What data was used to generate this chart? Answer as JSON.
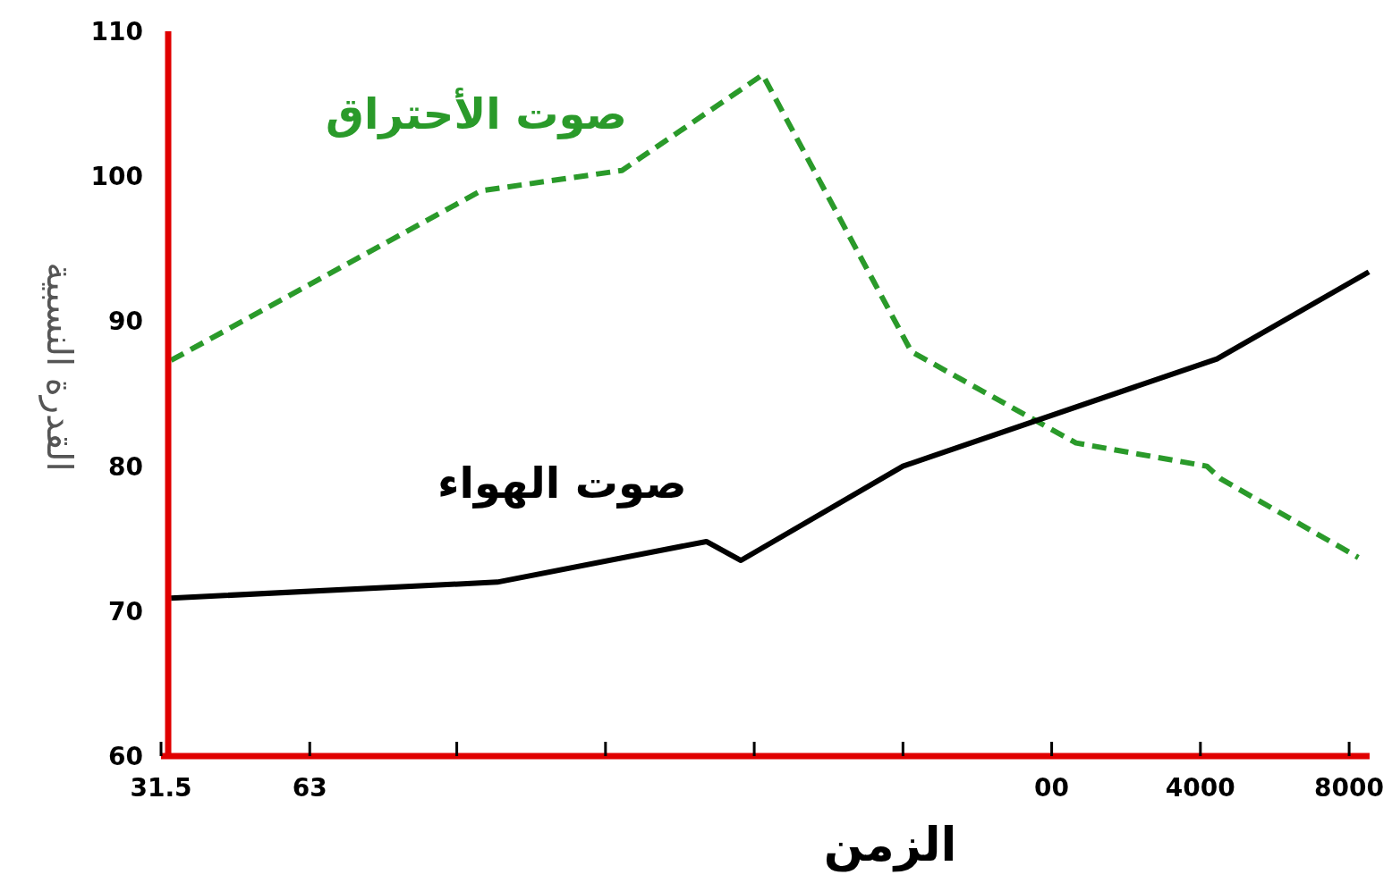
{
  "chart_data": {
    "type": "line",
    "xlabel": "الزمن",
    "ylabel": "القدرة النسبية",
    "log": "x",
    "xlim": [
      31.5,
      8800
    ],
    "xticks": [
      31.5,
      63,
      {
        "value": 125,
        "label": null
      },
      {
        "value": 250,
        "label": null
      },
      {
        "value": 500,
        "label": null
      },
      {
        "value": 1000,
        "label": null
      },
      {
        "value": 2000,
        "label": "00"
      },
      4000,
      8000
    ],
    "ylim": [
      60,
      110
    ],
    "yticks": [
      60,
      70,
      80,
      90,
      100,
      110
    ],
    "grid": false,
    "series": [
      {
        "name": "صوت الأحتراق",
        "color": "#2a9a2a",
        "line_style": "dashed",
        "x": [
          33,
          140,
          270,
          520,
          1040,
          2240,
          4120,
          4410,
          8350
        ],
        "values": [
          87.3,
          99.0,
          100.4,
          107.0,
          87.9,
          81.6,
          80.0,
          79.1,
          73.7
        ]
      },
      {
        "name": "صوت الهواء",
        "color": "#000000",
        "line_style": "solid",
        "x": [
          33,
          151,
          400,
          470,
          1000,
          4320,
          8770
        ],
        "values": [
          70.9,
          72.0,
          74.8,
          73.5,
          80.0,
          87.4,
          93.4
        ]
      }
    ]
  }
}
